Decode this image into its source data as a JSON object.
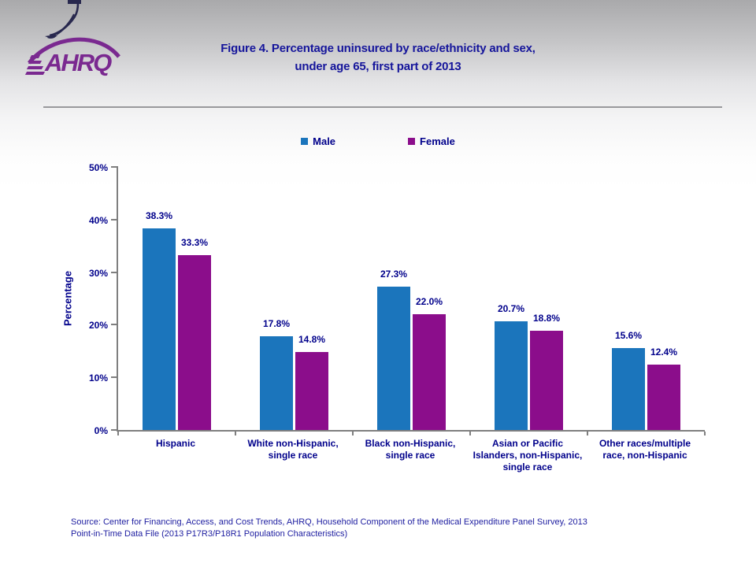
{
  "header": {
    "title_line1": "Figure 4. Percentage uninsured by race/ethnicity and sex,",
    "title_line2": "under age 65, first part of 2013",
    "logo_text": "AHRQ"
  },
  "legend": [
    {
      "label": "Male",
      "color": "#1B75BC"
    },
    {
      "label": "Female",
      "color": "#8B0D8B"
    }
  ],
  "chart_data": {
    "type": "bar",
    "title": "Figure 4. Percentage uninsured by race/ethnicity and sex, under age 65, first part of 2013",
    "categories": [
      "Hispanic",
      "White non-Hispanic,\nsingle race",
      "Black non-Hispanic,\nsingle race",
      "Asian or Pacific\nIslanders, non-Hispanic,\nsingle race",
      "Other races/multiple\nrace, non-Hispanic"
    ],
    "series": [
      {
        "name": "Male",
        "color": "#1B75BC",
        "values": [
          38.3,
          17.8,
          27.3,
          20.7,
          15.6
        ],
        "labels": [
          "38.3%",
          "17.8%",
          "27.3%",
          "20.7%",
          "15.6%"
        ]
      },
      {
        "name": "Female",
        "color": "#8B0D8B",
        "values": [
          33.3,
          14.8,
          22.0,
          18.8,
          12.4
        ],
        "labels": [
          "33.3%",
          "14.8%",
          "22.0%",
          "18.8%",
          "12.4%"
        ]
      }
    ],
    "xlabel": "",
    "ylabel": "Percentage",
    "yticks": [
      "0%",
      "10%",
      "20%",
      "30%",
      "40%",
      "50%"
    ],
    "ylim": [
      0,
      50
    ],
    "grid": false,
    "legend_position": "top"
  },
  "source": {
    "line1": "Source: Center for Financing, Access, and Cost Trends, AHRQ, Household Component of the Medical Expenditure Panel Survey,  2013",
    "line2": "Point-in-Time Data File (2013 P17R3/P18R1 Population Characteristics)"
  },
  "colors": {
    "male": "#1B75BC",
    "female": "#8B0D8B",
    "text_navy": "#00008B",
    "axis_gray": "#7F7F7F",
    "logo_purple": "#7A2990"
  }
}
